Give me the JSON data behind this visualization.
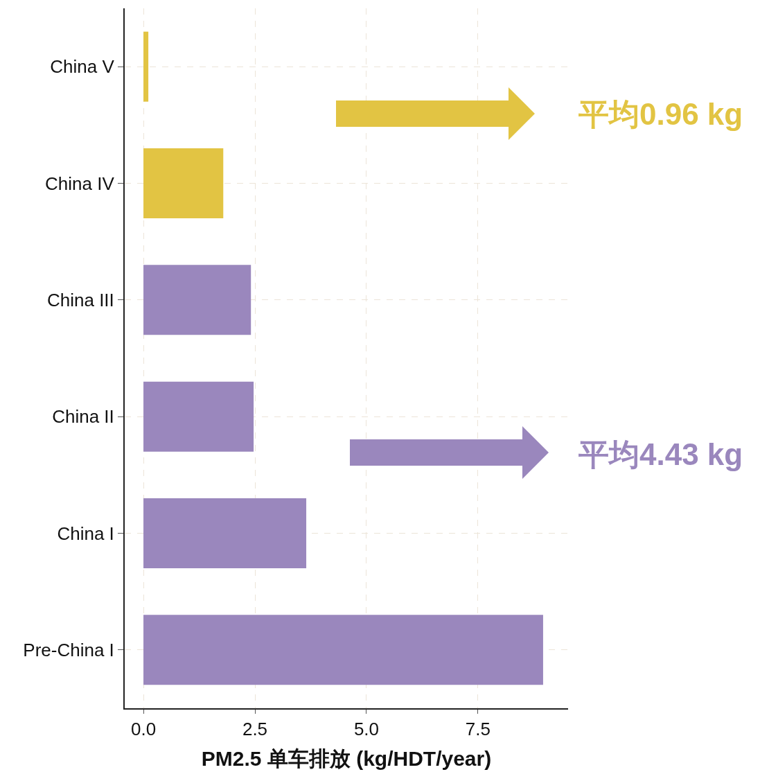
{
  "chart_data": {
    "type": "bar",
    "orientation": "horizontal",
    "xlabel": "PM2.5 单车排放 (kg/HDT/year)",
    "categories": [
      "China V",
      "China IV",
      "China III",
      "China II",
      "China I",
      "Pre-China I"
    ],
    "values": [
      0.11,
      1.79,
      2.41,
      2.47,
      3.65,
      8.96
    ],
    "colors": [
      "#e2c443",
      "#e2c443",
      "#9a87bd",
      "#9a87bd",
      "#9a87bd",
      "#9a87bd"
    ],
    "xlim": [
      -0.42,
      9.52
    ],
    "xticks": [
      {
        "value": 0,
        "label": "0.0"
      },
      2.5,
      {
        "value": 5,
        "label": "5.0"
      },
      7.5
    ],
    "grid": true,
    "annotations": [
      "平均0.96 kg",
      "平均4.43 kg"
    ]
  }
}
